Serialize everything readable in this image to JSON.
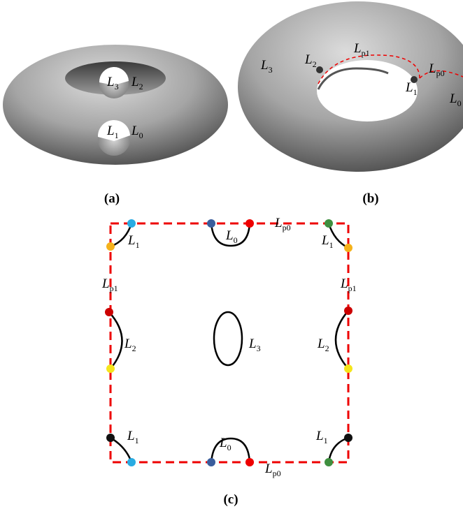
{
  "panels": {
    "a": {
      "caption": "(a)",
      "labels": [
        {
          "text": "L",
          "sub": "3"
        },
        {
          "text": "L",
          "sub": "2"
        },
        {
          "text": "L",
          "sub": "1"
        },
        {
          "text": "L",
          "sub": "0"
        }
      ]
    },
    "b": {
      "caption": "(b)",
      "labels": [
        {
          "text": "L",
          "sub": "3"
        },
        {
          "text": "L",
          "sub": "2"
        },
        {
          "text": "L",
          "sub": "p1"
        },
        {
          "text": "L",
          "sub": "p0"
        },
        {
          "text": "L",
          "sub": "1"
        },
        {
          "text": "L",
          "sub": "0"
        }
      ]
    },
    "c": {
      "caption": "(c)",
      "labels": [
        {
          "text": "L",
          "sub": "1"
        },
        {
          "text": "L",
          "sub": "0"
        },
        {
          "text": "L",
          "sub": "p0"
        },
        {
          "text": "L",
          "sub": "1"
        },
        {
          "text": "L",
          "sub": "p1"
        },
        {
          "text": "L",
          "sub": "p1"
        },
        {
          "text": "L",
          "sub": "2"
        },
        {
          "text": "L",
          "sub": "3"
        },
        {
          "text": "L",
          "sub": "2"
        },
        {
          "text": "L",
          "sub": "1"
        },
        {
          "text": "L",
          "sub": "0"
        },
        {
          "text": "L",
          "sub": "1"
        },
        {
          "text": "L",
          "sub": "p0"
        }
      ]
    }
  }
}
